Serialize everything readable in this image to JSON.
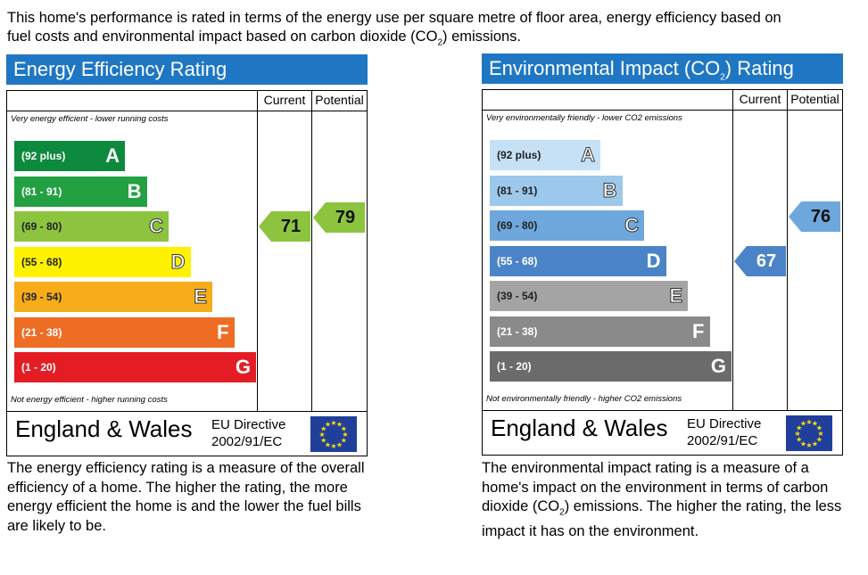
{
  "intro": {
    "line1": "This home's performance is rated in terms of the energy use per square metre of floor area, energy efficiency based on",
    "line2_pre": "fuel costs and environmental impact based on carbon dioxide (CO",
    "line2_sub": "2",
    "line2_post": ") emissions."
  },
  "column_headers": {
    "current": "Current",
    "potential": "Potential"
  },
  "footer": {
    "country": "England & Wales",
    "directive_line1": "EU Directive",
    "directive_line2": "2002/91/EC"
  },
  "chart_data": [
    {
      "type": "bar",
      "title": "Energy Efficiency Rating",
      "top_caption": "Very energy efficient - lower running costs",
      "bottom_caption": "Not energy efficient - higher running costs",
      "categories": [
        "A",
        "B",
        "C",
        "D",
        "E",
        "F",
        "G"
      ],
      "ranges": [
        "(92 plus)",
        "(81 - 91)",
        "(69 - 80)",
        "(55 - 68)",
        "(39 - 54)",
        "(21 - 38)",
        "(1 - 20)"
      ],
      "band_colors": [
        "#0d8a3d",
        "#23a142",
        "#8cc43f",
        "#fff200",
        "#f7ad1a",
        "#ee6d25",
        "#e31d23"
      ],
      "current": 71,
      "potential": 79,
      "current_band": "C",
      "potential_band": "C",
      "current_color": "#8cc43f",
      "potential_color": "#8cc43f",
      "description": "The energy efficiency rating is a measure of the overall efficiency of a home. The higher the rating, the more energy efficient the home is and the lower the fuel bills are likely to be."
    },
    {
      "type": "bar",
      "title_pre": "Environmental Impact (CO",
      "title_sub": "2",
      "title_post": ") Rating",
      "top_caption": "Very environmentally friendly - lower CO2 emissions",
      "bottom_caption": "Not environmentally friendly - higher CO2 emissions",
      "categories": [
        "A",
        "B",
        "C",
        "D",
        "E",
        "F",
        "G"
      ],
      "ranges": [
        "(92 plus)",
        "(81 - 91)",
        "(69 - 80)",
        "(55 - 68)",
        "(39 - 54)",
        "(21 - 38)",
        "(1 - 20)"
      ],
      "band_colors": [
        "#c6e1f6",
        "#9cc8ec",
        "#6ea7dc",
        "#4b84c6",
        "#a4a4a4",
        "#8a8a8a",
        "#6b6b6b"
      ],
      "current": 67,
      "potential": 76,
      "current_band": "D",
      "potential_band": "C",
      "current_color": "#4b84c6",
      "potential_color": "#6ea7dc",
      "description_pre": "The environmental impact rating is a measure of a home's impact on the environment in terms of carbon dioxide (CO",
      "description_sub": "2",
      "description_post": ") emissions. The higher the rating, the less impact it has on the environment."
    }
  ]
}
